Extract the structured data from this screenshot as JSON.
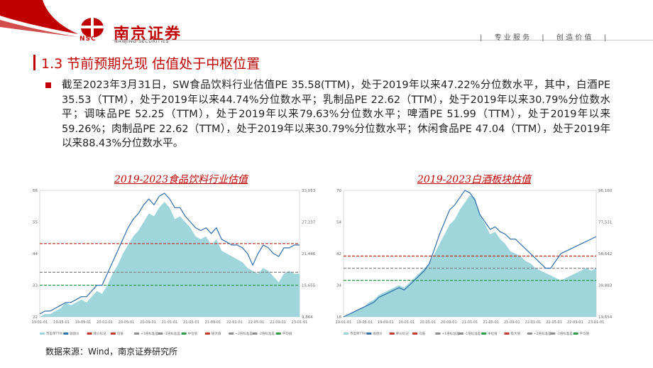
{
  "header": {
    "logo_cn": "南京证券",
    "logo_en": "NANJING SECURITIES",
    "logo_abbr": "NSC",
    "tagline_sep1": "|",
    "tagline1": "专 业 服 务",
    "tagline_sep2": "|",
    "tagline2": "创 造 价 值",
    "tagline_sep3": "|"
  },
  "section_title": "1.3 节前预期兑现 估值处于中枢位置",
  "paragraph": "截至2023年3月31日，SW食品饮料行业估值PE 35.58(TTM)，处于2019年以来47.22%分位数水平，其中，白酒PE 35.53（TTM），处于2019年以来44.74%分位数水平；乳制品PE 22.62（TTM），处于2019年以来30.79%分位数水平；调味品PE 52.25（TTM），处于2019年以来79.63%分位数水平；啤酒PE 51.99（TTM），处于2019年以来59.26%；肉制品PE 22.62（TTM），处于2019年以来30.79%分位数水平；休闲食品PE 47.04（TTM），处于2019年以来88.43%分位数水平。",
  "source": "数据来源：Wind，南京证券研究所",
  "colors": {
    "brand_red": "#c00000",
    "area": "#9fd6dc",
    "line": "#2f6fad",
    "ref_red": "#c0392b",
    "ref_gray": "#8c8c8c",
    "ref_green": "#2e9b47"
  },
  "chart_data": [
    {
      "type": "area",
      "title": "2019-2023食品饮料行业估值",
      "left_ticks": [
        "66",
        "55",
        "44",
        "33",
        "22"
      ],
      "right_ticks": [
        "33,053",
        "27,237",
        "21,446",
        "15,655",
        "9,864"
      ],
      "x_ticks": [
        "19-01-01",
        "19-05-01",
        "19-09-01",
        "20-01-01",
        "20-05-01",
        "20-09-01",
        "21-01-01",
        "21-05-01",
        "21-09-01",
        "22-01-01",
        "22-05-01",
        "22-09-01",
        "23-01-01"
      ],
      "legend": [
        "市盈率TTM",
        "收盘价",
        "降价标记",
        "均值",
        "+1倍标准差",
        "-1倍标准差",
        "中位值",
        "极大值",
        "+2倍标准差",
        "-2倍标准差",
        "平均值"
      ],
      "area_values": [
        22,
        23,
        23,
        24,
        25,
        27,
        26,
        27,
        28,
        27,
        29,
        31,
        30,
        33,
        37,
        40,
        44,
        47,
        50,
        52,
        55,
        58,
        57,
        60,
        62,
        60,
        56,
        57,
        55,
        53,
        50,
        49,
        50,
        47,
        49,
        45,
        44,
        43,
        42,
        41,
        39,
        38,
        37,
        39,
        38,
        36,
        34,
        37,
        38,
        37,
        37
      ],
      "line_values": [
        23,
        24,
        24,
        25,
        26,
        27,
        27,
        28,
        29,
        29,
        31,
        33,
        33,
        37,
        41,
        45,
        49,
        53,
        56,
        58,
        61,
        63,
        61,
        64,
        65,
        63,
        60,
        60,
        57,
        55,
        53,
        52,
        53,
        51,
        53,
        49,
        48,
        47,
        47,
        46,
        44,
        40,
        44,
        47,
        46,
        44,
        43,
        46,
        46,
        47,
        47
      ],
      "ref_red": 47.5,
      "ref_gray": 37.5,
      "ref_green": 33,
      "ylim": [
        22,
        66
      ]
    },
    {
      "type": "area",
      "title": "2019-2023白酒板块估值",
      "left_ticks": [
        "70",
        "54",
        "42",
        "34",
        "18"
      ],
      "right_ticks": [
        "96,160",
        "77,531",
        "58,642",
        "39,883",
        "19,654"
      ],
      "x_ticks": [
        "19-01-01",
        "19-05-01",
        "19-09-01",
        "20-01-01",
        "20-05-01",
        "20-09-01",
        "21-01-01",
        "21-05-01",
        "21-09-01",
        "22-01-01",
        "22-05-01",
        "22-09-01",
        "23-01-01"
      ],
      "legend": [
        "市盈率TTM",
        "收盘价",
        "降价标记",
        "均值",
        "+1倍标准差",
        "-1倍标准差",
        "中位值",
        "极大值",
        "+2倍标准差",
        "-2倍标准差",
        "平均值"
      ],
      "area_values": [
        18,
        19,
        20,
        21,
        22,
        24,
        25,
        27,
        28,
        29,
        30,
        31,
        30,
        32,
        34,
        36,
        38,
        40,
        44,
        48,
        52,
        56,
        58,
        62,
        65,
        68,
        67,
        60,
        56,
        52,
        53,
        50,
        48,
        45,
        44,
        43,
        41,
        40,
        38,
        37,
        36,
        35,
        34,
        33,
        34,
        35,
        36,
        37,
        38,
        37,
        38
      ],
      "line_values": [
        18,
        19,
        20,
        21,
        22,
        23,
        24,
        26,
        27,
        28,
        29,
        30,
        29,
        31,
        33,
        35,
        37,
        40,
        46,
        52,
        57,
        62,
        64,
        67,
        70,
        69,
        66,
        60,
        57,
        54,
        55,
        53,
        52,
        50,
        50,
        48,
        46,
        44,
        42,
        40,
        38,
        38,
        41,
        44,
        45,
        46,
        47,
        48,
        49,
        50,
        51
      ],
      "ref_red": 43,
      "ref_gray": 38,
      "ref_green": 33,
      "ylim": [
        18,
        70
      ]
    }
  ]
}
